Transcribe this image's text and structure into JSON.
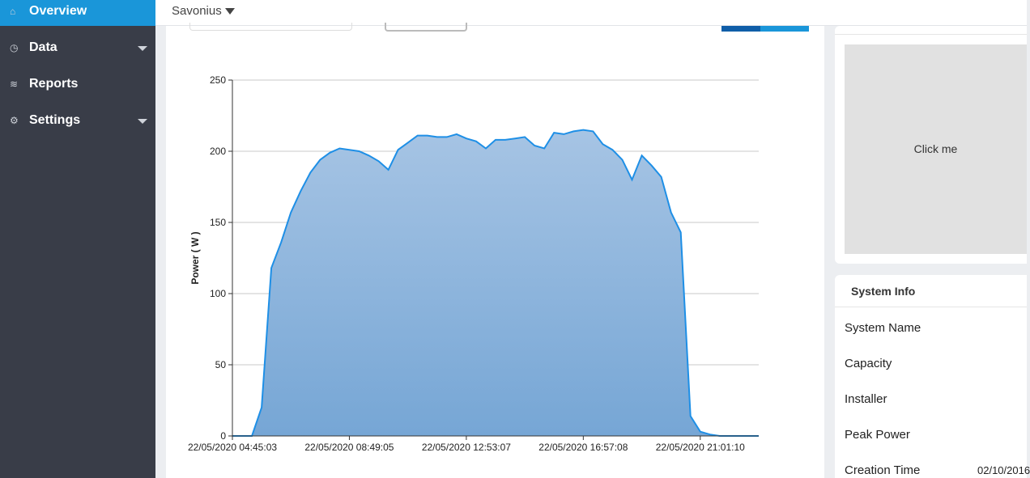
{
  "sidebar": {
    "items": [
      "Overview",
      "Data",
      "Reports",
      "Settings"
    ]
  },
  "header": {
    "site": "Savonius"
  },
  "chart_data": {
    "type": "area",
    "y_label": "Power ( W )",
    "color": "#1e8fe6",
    "categories": [
      "22/05/2020 04:45:03",
      null,
      null,
      null,
      null,
      null,
      null,
      null,
      null,
      null,
      null,
      null,
      "22/05/2020 08:49:05",
      null,
      null,
      null,
      null,
      null,
      null,
      null,
      null,
      null,
      null,
      null,
      "22/05/2020 12:53:07",
      null,
      null,
      null,
      null,
      null,
      null,
      null,
      null,
      null,
      null,
      null,
      "22/05/2020 16:57:08",
      null,
      null,
      null,
      null,
      null,
      null,
      null,
      null,
      null,
      null,
      null,
      "22/05/2020 21:01:10",
      null,
      null,
      null,
      null,
      null,
      null
    ],
    "values": [
      0,
      0,
      0,
      20,
      118,
      136,
      157,
      172,
      185,
      194,
      199,
      202,
      201,
      200,
      197,
      193,
      187,
      201,
      206,
      211,
      211,
      210,
      210,
      212,
      209,
      207,
      202,
      208,
      208,
      209,
      210,
      204,
      202,
      213,
      212,
      214,
      215,
      214,
      205,
      201,
      194,
      180,
      197,
      190,
      182,
      157,
      143,
      14,
      3,
      1,
      0,
      0,
      0,
      0,
      0
    ],
    "ylim": [
      0,
      250
    ],
    "yticks": [
      0,
      50,
      100,
      150,
      200,
      250
    ],
    "grid": true
  },
  "panel": {
    "button": "Click me",
    "title": "System Info",
    "rows": [
      {
        "label": "System Name"
      },
      {
        "label": "Capacity"
      },
      {
        "label": "Installer"
      },
      {
        "label": "Peak Power"
      },
      {
        "label": "Creation Time",
        "value": "02/10/2016"
      }
    ]
  }
}
